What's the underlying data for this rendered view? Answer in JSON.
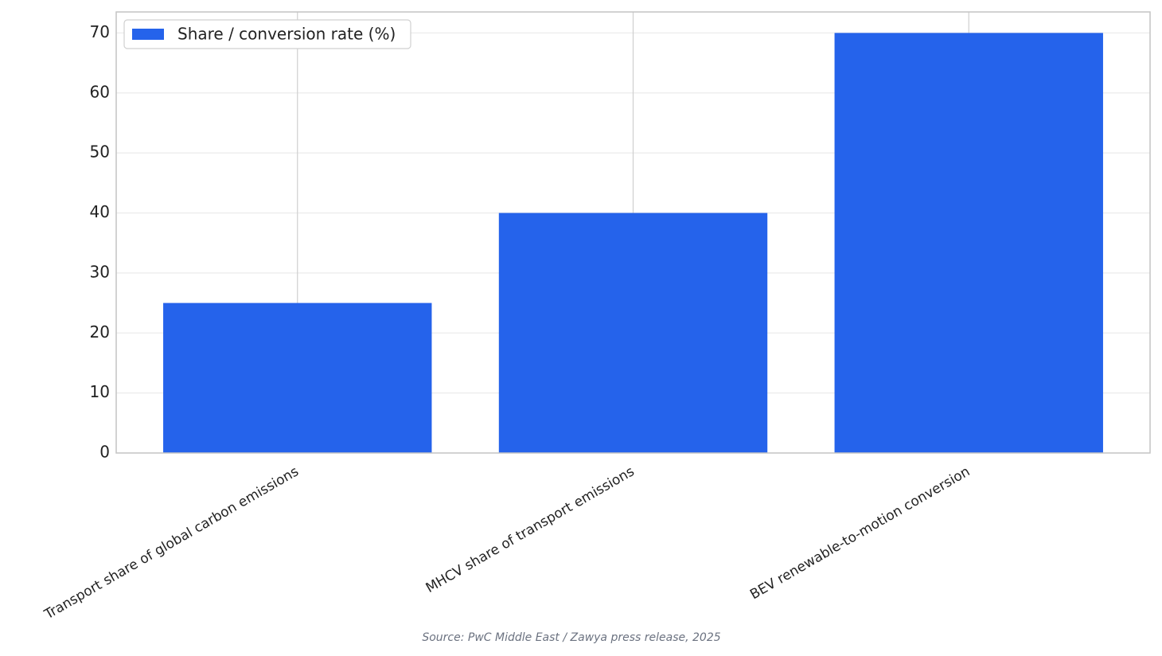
{
  "chart_data": {
    "type": "bar",
    "categories": [
      "Transport share of global carbon emissions",
      "MHCV share of transport emissions",
      "BEV renewable-to-motion conversion"
    ],
    "series": [
      {
        "name": "Share / conversion rate (%)",
        "color": "#2563eb",
        "values": [
          25,
          40,
          70
        ]
      }
    ],
    "ylim": [
      0,
      73.5
    ],
    "yticks": [
      0,
      10,
      20,
      30,
      40,
      50,
      60,
      70
    ],
    "grid": true,
    "legend": "upper left",
    "source": "Source: PwC Middle East / Zawya press release, 2025"
  }
}
